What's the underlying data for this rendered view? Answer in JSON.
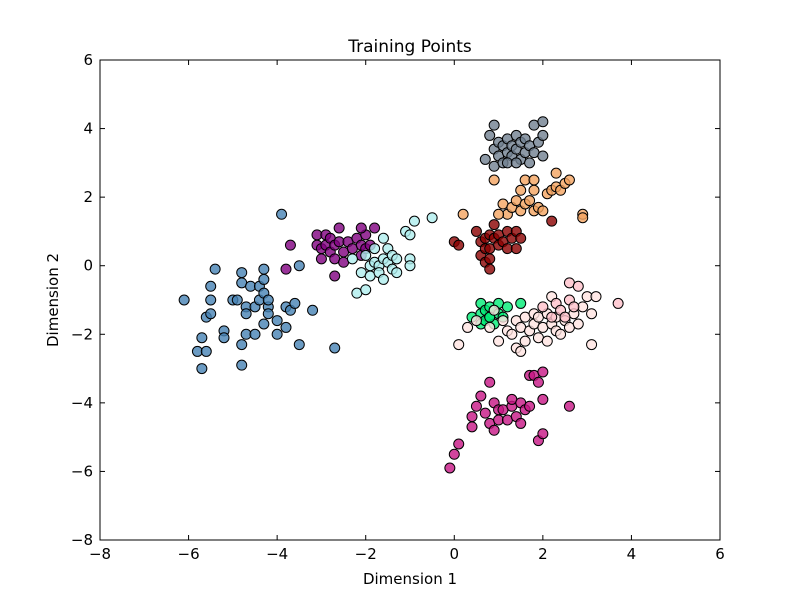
{
  "chart_data": {
    "type": "scatter",
    "title": "Training Points",
    "xlabel": "Dimension 1",
    "ylabel": "Dimension 2",
    "xlim": [
      -8,
      6
    ],
    "ylim": [
      -8,
      6
    ],
    "xticks": [
      -8,
      -6,
      -4,
      -2,
      0,
      2,
      4,
      6
    ],
    "yticks": [
      -8,
      -6,
      -4,
      -2,
      0,
      2,
      4,
      6
    ],
    "xtick_labels": [
      "−8",
      "−6",
      "−4",
      "−2",
      "0",
      "2",
      "4",
      "6"
    ],
    "ytick_labels": [
      "−8",
      "−6",
      "−4",
      "−2",
      "0",
      "2",
      "4",
      "6"
    ],
    "grid": false,
    "legend": "none",
    "series": [
      {
        "color": "#4682b4",
        "points": [
          [
            -6.1,
            -1.0
          ],
          [
            -5.8,
            -2.5
          ],
          [
            -5.7,
            -3.0
          ],
          [
            -5.7,
            -2.1
          ],
          [
            -5.6,
            -2.5
          ],
          [
            -5.6,
            -1.5
          ],
          [
            -5.5,
            -0.6
          ],
          [
            -5.5,
            -1.0
          ],
          [
            -5.5,
            -1.4
          ],
          [
            -5.4,
            -0.1
          ],
          [
            -5.2,
            -1.9
          ],
          [
            -5.2,
            -2.1
          ],
          [
            -5.0,
            -1.0
          ],
          [
            -4.9,
            -1.0
          ],
          [
            -4.8,
            -0.2
          ],
          [
            -4.8,
            -0.5
          ],
          [
            -4.8,
            -2.9
          ],
          [
            -4.8,
            -2.3
          ],
          [
            -4.7,
            -1.2
          ],
          [
            -4.7,
            -1.4
          ],
          [
            -4.7,
            -2.0
          ],
          [
            -4.6,
            -0.6
          ],
          [
            -4.5,
            -2.0
          ],
          [
            -4.5,
            -1.2
          ],
          [
            -4.4,
            -1.0
          ],
          [
            -4.4,
            -0.6
          ],
          [
            -4.3,
            -0.8
          ],
          [
            -4.3,
            -0.4
          ],
          [
            -4.3,
            -0.1
          ],
          [
            -4.3,
            -1.7
          ],
          [
            -4.2,
            -1.2
          ],
          [
            -4.2,
            -1.4
          ],
          [
            -4.2,
            -1.0
          ],
          [
            -4.0,
            -2.0
          ],
          [
            -4.0,
            -1.6
          ],
          [
            -3.9,
            1.5
          ],
          [
            -3.8,
            -1.8
          ],
          [
            -3.8,
            -1.2
          ],
          [
            -3.7,
            -1.3
          ],
          [
            -3.6,
            -1.1
          ],
          [
            -3.5,
            0.0
          ],
          [
            -3.5,
            -2.3
          ],
          [
            -3.2,
            -1.3
          ],
          [
            -2.7,
            -2.4
          ]
        ]
      },
      {
        "color": "#800080",
        "points": [
          [
            -3.8,
            -0.1
          ],
          [
            -3.7,
            0.6
          ],
          [
            -3.1,
            0.9
          ],
          [
            -3.1,
            0.6
          ],
          [
            -3.0,
            0.5
          ],
          [
            -3.0,
            0.2
          ],
          [
            -2.9,
            0.9
          ],
          [
            -2.9,
            0.6
          ],
          [
            -2.8,
            0.8
          ],
          [
            -2.8,
            0.4
          ],
          [
            -2.7,
            0.6
          ],
          [
            -2.7,
            0.2
          ],
          [
            -2.7,
            -0.3
          ],
          [
            -2.6,
            1.1
          ],
          [
            -2.6,
            0.7
          ],
          [
            -2.5,
            0.4
          ],
          [
            -2.5,
            0.1
          ],
          [
            -2.4,
            0.7
          ],
          [
            -2.3,
            0.5
          ],
          [
            -2.2,
            0.8
          ],
          [
            -2.1,
            0.3
          ],
          [
            -2.1,
            0.6
          ],
          [
            -2.0,
            0.5
          ],
          [
            -2.0,
            0.9
          ],
          [
            -1.9,
            0.6
          ],
          [
            -1.8,
            1.1
          ],
          [
            -2.1,
            1.1
          ]
        ]
      },
      {
        "color": "#afeeee",
        "points": [
          [
            -2.3,
            0.2
          ],
          [
            -2.2,
            -0.8
          ],
          [
            -2.1,
            -0.2
          ],
          [
            -2.0,
            0.3
          ],
          [
            -2.0,
            -0.7
          ],
          [
            -1.9,
            0.0
          ],
          [
            -1.9,
            -0.3
          ],
          [
            -1.8,
            0.1
          ],
          [
            -1.8,
            0.5
          ],
          [
            -1.7,
            0.0
          ],
          [
            -1.7,
            -0.2
          ],
          [
            -1.6,
            0.2
          ],
          [
            -1.6,
            0.8
          ],
          [
            -1.6,
            -0.4
          ],
          [
            -1.5,
            0.1
          ],
          [
            -1.5,
            0.5
          ],
          [
            -1.4,
            0.3
          ],
          [
            -1.4,
            -0.1
          ],
          [
            -1.3,
            0.2
          ],
          [
            -1.3,
            -0.2
          ],
          [
            -1.1,
            1.0
          ],
          [
            -1.0,
            0.9
          ],
          [
            -0.9,
            1.3
          ],
          [
            -1.0,
            0.2
          ],
          [
            -1.0,
            0.0
          ],
          [
            -0.5,
            1.4
          ]
        ]
      },
      {
        "color": "#708090",
        "points": [
          [
            0.7,
            3.1
          ],
          [
            0.8,
            3.8
          ],
          [
            0.9,
            4.1
          ],
          [
            0.9,
            3.4
          ],
          [
            0.9,
            2.9
          ],
          [
            1.0,
            3.6
          ],
          [
            1.0,
            3.2
          ],
          [
            1.1,
            3.5
          ],
          [
            1.1,
            3.0
          ],
          [
            1.2,
            3.7
          ],
          [
            1.2,
            3.3
          ],
          [
            1.3,
            3.5
          ],
          [
            1.3,
            3.2
          ],
          [
            1.4,
            3.8
          ],
          [
            1.4,
            3.4
          ],
          [
            1.5,
            3.6
          ],
          [
            1.5,
            3.1
          ],
          [
            1.6,
            3.7
          ],
          [
            1.6,
            3.3
          ],
          [
            1.7,
            3.5
          ],
          [
            1.7,
            3.0
          ],
          [
            1.8,
            4.1
          ],
          [
            1.8,
            3.3
          ],
          [
            1.9,
            3.6
          ],
          [
            2.0,
            4.2
          ],
          [
            2.0,
            3.8
          ],
          [
            2.0,
            3.2
          ],
          [
            1.2,
            3.0
          ],
          [
            1.4,
            3.0
          ]
        ]
      },
      {
        "color": "#f4a460",
        "points": [
          [
            0.9,
            2.5
          ],
          [
            1.1,
            1.8
          ],
          [
            1.2,
            1.5
          ],
          [
            1.3,
            1.7
          ],
          [
            1.4,
            1.9
          ],
          [
            1.5,
            2.2
          ],
          [
            1.5,
            1.6
          ],
          [
            1.6,
            1.8
          ],
          [
            1.6,
            2.5
          ],
          [
            1.7,
            1.9
          ],
          [
            1.8,
            2.5
          ],
          [
            1.8,
            1.6
          ],
          [
            1.8,
            2.2
          ],
          [
            1.9,
            1.7
          ],
          [
            2.0,
            1.6
          ],
          [
            2.1,
            2.1
          ],
          [
            2.2,
            2.2
          ],
          [
            2.3,
            2.7
          ],
          [
            2.3,
            2.3
          ],
          [
            2.4,
            2.2
          ],
          [
            2.5,
            2.4
          ],
          [
            2.6,
            2.5
          ],
          [
            2.9,
            1.5
          ],
          [
            2.9,
            1.4
          ],
          [
            0.2,
            1.5
          ],
          [
            1.0,
            1.5
          ]
        ]
      },
      {
        "color": "#8b0000",
        "points": [
          [
            0.0,
            0.7
          ],
          [
            0.1,
            0.6
          ],
          [
            0.5,
            1.0
          ],
          [
            0.6,
            0.7
          ],
          [
            0.6,
            0.3
          ],
          [
            0.7,
            0.8
          ],
          [
            0.7,
            0.1
          ],
          [
            0.7,
            0.5
          ],
          [
            0.8,
            0.9
          ],
          [
            0.8,
            0.5
          ],
          [
            0.8,
            0.2
          ],
          [
            0.9,
            1.2
          ],
          [
            0.9,
            0.8
          ],
          [
            1.0,
            0.6
          ],
          [
            1.0,
            0.9
          ],
          [
            1.1,
            0.7
          ],
          [
            1.2,
            1.0
          ],
          [
            1.2,
            0.5
          ],
          [
            1.3,
            0.8
          ],
          [
            1.4,
            1.0
          ],
          [
            1.4,
            0.5
          ],
          [
            1.5,
            0.8
          ],
          [
            2.2,
            1.3
          ],
          [
            0.8,
            -0.1
          ]
        ]
      },
      {
        "color": "#00ee76",
        "points": [
          [
            0.4,
            -1.5
          ],
          [
            0.6,
            -1.1
          ],
          [
            0.6,
            -1.7
          ],
          [
            0.6,
            -1.4
          ],
          [
            0.7,
            -1.3
          ],
          [
            0.7,
            -1.6
          ],
          [
            0.8,
            -1.2
          ],
          [
            0.8,
            -1.5
          ],
          [
            0.9,
            -1.3
          ],
          [
            0.9,
            -1.7
          ],
          [
            1.0,
            -1.1
          ],
          [
            1.0,
            -1.4
          ],
          [
            1.1,
            -1.5
          ],
          [
            1.2,
            -1.2
          ],
          [
            1.5,
            -1.1
          ],
          [
            0.8,
            -1.5
          ]
        ]
      },
      {
        "color": "#ffe4e1",
        "points": [
          [
            0.1,
            -2.3
          ],
          [
            0.3,
            -1.8
          ],
          [
            0.5,
            -1.6
          ],
          [
            0.8,
            -1.8
          ],
          [
            0.9,
            -1.3
          ],
          [
            1.0,
            -2.2
          ],
          [
            1.1,
            -1.6
          ],
          [
            1.2,
            -1.9
          ],
          [
            1.3,
            -2.0
          ],
          [
            1.4,
            -2.4
          ],
          [
            1.4,
            -1.6
          ],
          [
            1.5,
            -2.5
          ],
          [
            1.5,
            -1.8
          ],
          [
            1.6,
            -1.5
          ],
          [
            1.6,
            -2.2
          ],
          [
            1.7,
            -1.9
          ],
          [
            1.8,
            -1.4
          ],
          [
            1.8,
            -1.7
          ],
          [
            1.9,
            -2.1
          ],
          [
            1.9,
            -1.5
          ],
          [
            2.0,
            -1.8
          ],
          [
            2.1,
            -1.4
          ],
          [
            2.1,
            -2.2
          ],
          [
            2.2,
            -1.7
          ],
          [
            2.2,
            -0.9
          ],
          [
            2.3,
            -1.5
          ],
          [
            2.3,
            -1.9
          ],
          [
            2.4,
            -2.0
          ],
          [
            2.5,
            -1.6
          ],
          [
            2.6,
            -1.8
          ],
          [
            2.7,
            -1.4
          ],
          [
            2.8,
            -1.7
          ],
          [
            2.9,
            -1.2
          ],
          [
            3.0,
            -0.9
          ],
          [
            3.1,
            -1.4
          ],
          [
            3.1,
            -2.3
          ],
          [
            3.2,
            -0.9
          ]
        ]
      },
      {
        "color": "#ffc0cb",
        "points": [
          [
            2.0,
            -1.2
          ],
          [
            2.2,
            -1.5
          ],
          [
            2.3,
            -1.1
          ],
          [
            2.4,
            -1.3
          ],
          [
            2.5,
            -1.5
          ],
          [
            2.6,
            -1.0
          ],
          [
            2.6,
            -0.5
          ],
          [
            2.7,
            -1.2
          ],
          [
            2.8,
            -0.6
          ],
          [
            3.7,
            -1.1
          ]
        ]
      },
      {
        "color": "#c71585",
        "points": [
          [
            -0.1,
            -5.9
          ],
          [
            0.0,
            -5.5
          ],
          [
            0.1,
            -5.2
          ],
          [
            0.4,
            -4.7
          ],
          [
            0.4,
            -4.4
          ],
          [
            0.5,
            -4.1
          ],
          [
            0.6,
            -3.8
          ],
          [
            0.7,
            -4.3
          ],
          [
            0.8,
            -4.6
          ],
          [
            0.8,
            -3.4
          ],
          [
            0.9,
            -4.0
          ],
          [
            0.9,
            -4.8
          ],
          [
            1.0,
            -4.2
          ],
          [
            1.0,
            -4.5
          ],
          [
            1.1,
            -4.2
          ],
          [
            1.2,
            -4.5
          ],
          [
            1.3,
            -4.1
          ],
          [
            1.3,
            -3.9
          ],
          [
            1.4,
            -4.4
          ],
          [
            1.5,
            -4.0
          ],
          [
            1.5,
            -4.6
          ],
          [
            1.6,
            -4.2
          ],
          [
            1.7,
            -4.1
          ],
          [
            1.7,
            -3.2
          ],
          [
            1.8,
            -3.2
          ],
          [
            1.9,
            -3.4
          ],
          [
            1.9,
            -5.1
          ],
          [
            2.0,
            -3.1
          ],
          [
            2.0,
            -3.9
          ],
          [
            2.0,
            -4.9
          ],
          [
            2.6,
            -4.1
          ]
        ]
      }
    ]
  }
}
